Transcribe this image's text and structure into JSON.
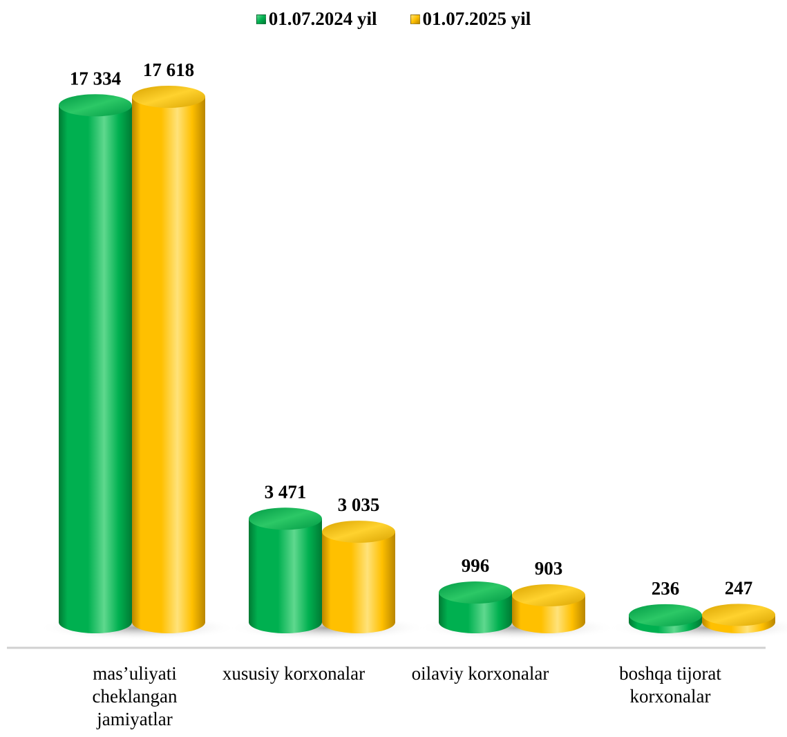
{
  "chart_data": {
    "type": "bar",
    "categories": [
      "mas’uliyati\ncheklangan\njamiyatlar",
      "xususiy korxonalar",
      "oilaviy korxonalar",
      "boshqa tijorat\nkorxonalar"
    ],
    "category_labels": [
      "mas’uliyati cheklangan jamiyatlar",
      "xususiy korxonalar",
      "oilaviy korxonalar",
      "boshqa tijorat korxonalar"
    ],
    "series": [
      {
        "name": "01.07.2024 yil",
        "color": "#00b050",
        "values": [
          17334,
          3471,
          996,
          236
        ],
        "value_labels": [
          "17 334",
          "3 471",
          "996",
          "236"
        ]
      },
      {
        "name": "01.07.2025 yil",
        "color": "#ffc000",
        "values": [
          17618,
          3035,
          903,
          247
        ],
        "value_labels": [
          "17 618",
          "3 035",
          "903",
          "247"
        ]
      }
    ],
    "ylim": [
      0,
      17618
    ],
    "grid": false,
    "legend_position": "top-center",
    "style": "3d-cylinder"
  }
}
